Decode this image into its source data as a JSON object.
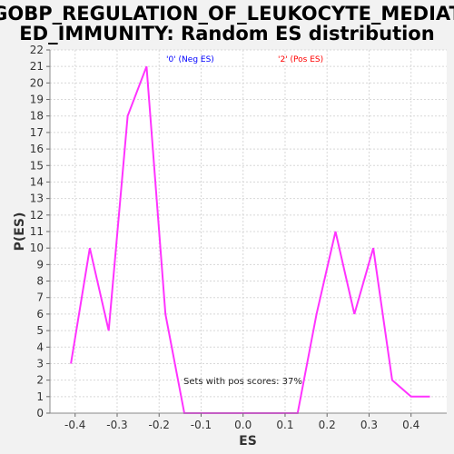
{
  "chart_data": {
    "type": "line",
    "title_lines": [
      "GOBP_REGULATION_OF_LEUKOCYTE_MEDIAT",
      "ED_IMMUNITY: Random ES distribution"
    ],
    "xlabel": "ES",
    "ylabel": "P(ES)",
    "xlim": [
      -0.46,
      0.485
    ],
    "ylim": [
      0,
      22
    ],
    "xticks": [
      -0.4,
      -0.3,
      -0.2,
      -0.1,
      0.0,
      0.1,
      0.2,
      0.3,
      0.4
    ],
    "xtick_labels": [
      "-0.4",
      "-0.3",
      "-0.2",
      "-0.1",
      "0.0",
      "0.1",
      "0.2",
      "0.3",
      "0.4"
    ],
    "yticks": [
      0,
      1,
      2,
      3,
      4,
      5,
      6,
      7,
      8,
      9,
      10,
      11,
      12,
      13,
      14,
      15,
      16,
      17,
      18,
      19,
      20,
      21,
      22
    ],
    "grid": true,
    "legend": [
      {
        "label": "'0' (Neg ES)",
        "color": "#0000ff"
      },
      {
        "label": "'2' (Pos ES)",
        "color": "#ff0000"
      }
    ],
    "annotation": "Sets with pos scores: 37%",
    "series": [
      {
        "color": "#ff33ff",
        "x": [
          -0.41,
          -0.365,
          -0.32,
          -0.275,
          -0.23,
          -0.185,
          -0.14,
          0.13,
          0.175,
          0.22,
          0.265,
          0.31,
          0.355,
          0.4,
          0.445
        ],
        "y": [
          3,
          10,
          5,
          18,
          21,
          6,
          0,
          0,
          6,
          11,
          6,
          10,
          2,
          1,
          1
        ]
      }
    ]
  }
}
